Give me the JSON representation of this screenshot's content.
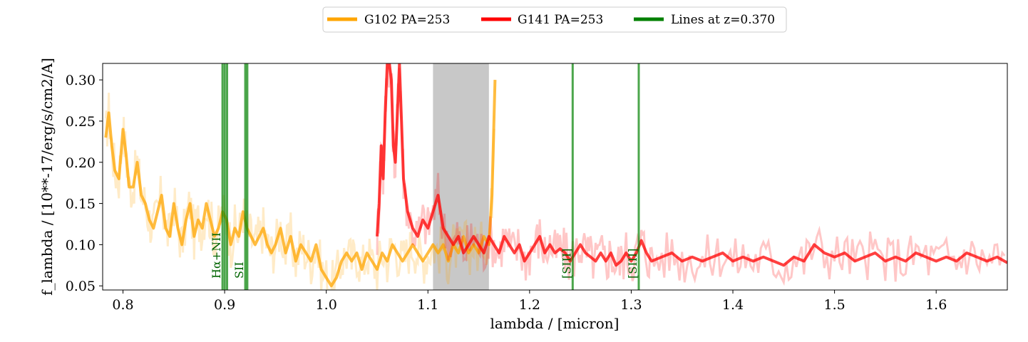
{
  "chart_data": {
    "type": "line",
    "xlabel": "lambda / [micron]",
    "ylabel": "f_lambda / [10**-17/erg/s/cm2/A]",
    "xlim": [
      0.78,
      1.67
    ],
    "ylim": [
      0.045,
      0.32
    ],
    "xticks": [
      0.8,
      0.9,
      1.0,
      1.1,
      1.2,
      1.3,
      1.4,
      1.5,
      1.6
    ],
    "xtick_labels": [
      "0.8",
      "0.9",
      "1.0",
      "1.1",
      "1.2",
      "1.3",
      "1.4",
      "1.5",
      "1.6"
    ],
    "yticks": [
      0.05,
      0.1,
      0.15,
      0.2,
      0.25,
      0.3
    ],
    "ytick_labels": [
      "0.05",
      "0.10",
      "0.15",
      "0.20",
      "0.25",
      "0.30"
    ],
    "legend": {
      "placement": "upper-center-outside",
      "entries": [
        {
          "label": "G102 PA=253",
          "color": "#ffa500"
        },
        {
          "label": "G141 PA=253",
          "color": "#ff0000"
        },
        {
          "label": "Lines at z=0.370",
          "color": "#008000"
        }
      ]
    },
    "shaded_region": {
      "x0": 1.105,
      "x1": 1.16,
      "color": "#c8c8c8"
    },
    "emission_lines": [
      {
        "label": "Hα+NII",
        "x": [
          0.8979,
          0.9001,
          0.9024
        ]
      },
      {
        "label": "SII",
        "x": [
          0.9203,
          0.9223
        ]
      },
      {
        "label": "[SIII]",
        "x": [
          1.2424
        ]
      },
      {
        "label": "[SIII]",
        "x": [
          1.3074
        ]
      }
    ],
    "series": [
      {
        "name": "G102 PA=253",
        "color": "#ffa500",
        "x": [
          0.783,
          0.786,
          0.789,
          0.792,
          0.796,
          0.8,
          0.803,
          0.806,
          0.81,
          0.814,
          0.818,
          0.822,
          0.826,
          0.83,
          0.834,
          0.838,
          0.842,
          0.846,
          0.85,
          0.854,
          0.858,
          0.862,
          0.866,
          0.87,
          0.874,
          0.878,
          0.882,
          0.886,
          0.89,
          0.894,
          0.898,
          0.902,
          0.906,
          0.91,
          0.914,
          0.918,
          0.922,
          0.926,
          0.93,
          0.934,
          0.938,
          0.942,
          0.946,
          0.95,
          0.955,
          0.96,
          0.965,
          0.97,
          0.975,
          0.98,
          0.985,
          0.99,
          0.995,
          1.0,
          1.005,
          1.01,
          1.015,
          1.02,
          1.025,
          1.03,
          1.035,
          1.04,
          1.045,
          1.05,
          1.055,
          1.06,
          1.065,
          1.07,
          1.075,
          1.08,
          1.085,
          1.09,
          1.095,
          1.1,
          1.105,
          1.11,
          1.115,
          1.12,
          1.125,
          1.13,
          1.135,
          1.14,
          1.145,
          1.15,
          1.155,
          1.16,
          1.163,
          1.166
        ],
        "values": [
          0.23,
          0.26,
          0.22,
          0.19,
          0.18,
          0.24,
          0.21,
          0.17,
          0.17,
          0.2,
          0.16,
          0.15,
          0.13,
          0.12,
          0.14,
          0.16,
          0.12,
          0.11,
          0.15,
          0.12,
          0.1,
          0.13,
          0.15,
          0.11,
          0.13,
          0.12,
          0.15,
          0.13,
          0.11,
          0.12,
          0.14,
          0.13,
          0.1,
          0.12,
          0.11,
          0.14,
          0.12,
          0.11,
          0.1,
          0.11,
          0.12,
          0.1,
          0.09,
          0.1,
          0.12,
          0.09,
          0.11,
          0.08,
          0.1,
          0.09,
          0.08,
          0.1,
          0.07,
          0.06,
          0.05,
          0.06,
          0.08,
          0.09,
          0.08,
          0.09,
          0.07,
          0.09,
          0.08,
          0.07,
          0.09,
          0.08,
          0.1,
          0.09,
          0.08,
          0.09,
          0.1,
          0.09,
          0.08,
          0.09,
          0.1,
          0.09,
          0.1,
          0.08,
          0.1,
          0.09,
          0.11,
          0.09,
          0.1,
          0.09,
          0.11,
          0.1,
          0.16,
          0.3
        ]
      },
      {
        "name": "G141 PA=253",
        "color": "#ff0000",
        "x": [
          1.05,
          1.052,
          1.054,
          1.056,
          1.058,
          1.06,
          1.062,
          1.064,
          1.066,
          1.068,
          1.07,
          1.072,
          1.074,
          1.076,
          1.08,
          1.085,
          1.09,
          1.095,
          1.1,
          1.105,
          1.11,
          1.115,
          1.12,
          1.125,
          1.13,
          1.135,
          1.14,
          1.145,
          1.15,
          1.155,
          1.16,
          1.165,
          1.17,
          1.175,
          1.18,
          1.185,
          1.19,
          1.195,
          1.2,
          1.205,
          1.21,
          1.215,
          1.22,
          1.225,
          1.23,
          1.235,
          1.24,
          1.245,
          1.25,
          1.255,
          1.26,
          1.265,
          1.27,
          1.275,
          1.28,
          1.285,
          1.29,
          1.295,
          1.3,
          1.305,
          1.31,
          1.315,
          1.32,
          1.33,
          1.34,
          1.35,
          1.36,
          1.37,
          1.38,
          1.39,
          1.4,
          1.41,
          1.42,
          1.43,
          1.44,
          1.45,
          1.46,
          1.47,
          1.48,
          1.49,
          1.5,
          1.51,
          1.52,
          1.53,
          1.54,
          1.55,
          1.56,
          1.57,
          1.58,
          1.59,
          1.6,
          1.61,
          1.62,
          1.63,
          1.64,
          1.65,
          1.66,
          1.67
        ],
        "values": [
          0.11,
          0.15,
          0.22,
          0.18,
          0.26,
          0.32,
          0.32,
          0.3,
          0.22,
          0.2,
          0.26,
          0.32,
          0.25,
          0.18,
          0.14,
          0.12,
          0.11,
          0.13,
          0.12,
          0.14,
          0.16,
          0.12,
          0.11,
          0.1,
          0.11,
          0.09,
          0.1,
          0.11,
          0.1,
          0.09,
          0.11,
          0.1,
          0.09,
          0.11,
          0.1,
          0.09,
          0.1,
          0.08,
          0.09,
          0.1,
          0.11,
          0.09,
          0.1,
          0.09,
          0.095,
          0.09,
          0.08,
          0.09,
          0.1,
          0.09,
          0.085,
          0.08,
          0.09,
          0.08,
          0.09,
          0.075,
          0.08,
          0.09,
          0.08,
          0.09,
          0.105,
          0.09,
          0.08,
          0.085,
          0.09,
          0.08,
          0.085,
          0.08,
          0.085,
          0.09,
          0.08,
          0.085,
          0.08,
          0.085,
          0.08,
          0.075,
          0.085,
          0.08,
          0.1,
          0.09,
          0.085,
          0.09,
          0.08,
          0.085,
          0.09,
          0.08,
          0.085,
          0.08,
          0.09,
          0.085,
          0.08,
          0.085,
          0.08,
          0.09,
          0.085,
          0.08,
          0.085,
          0.078
        ]
      }
    ]
  }
}
